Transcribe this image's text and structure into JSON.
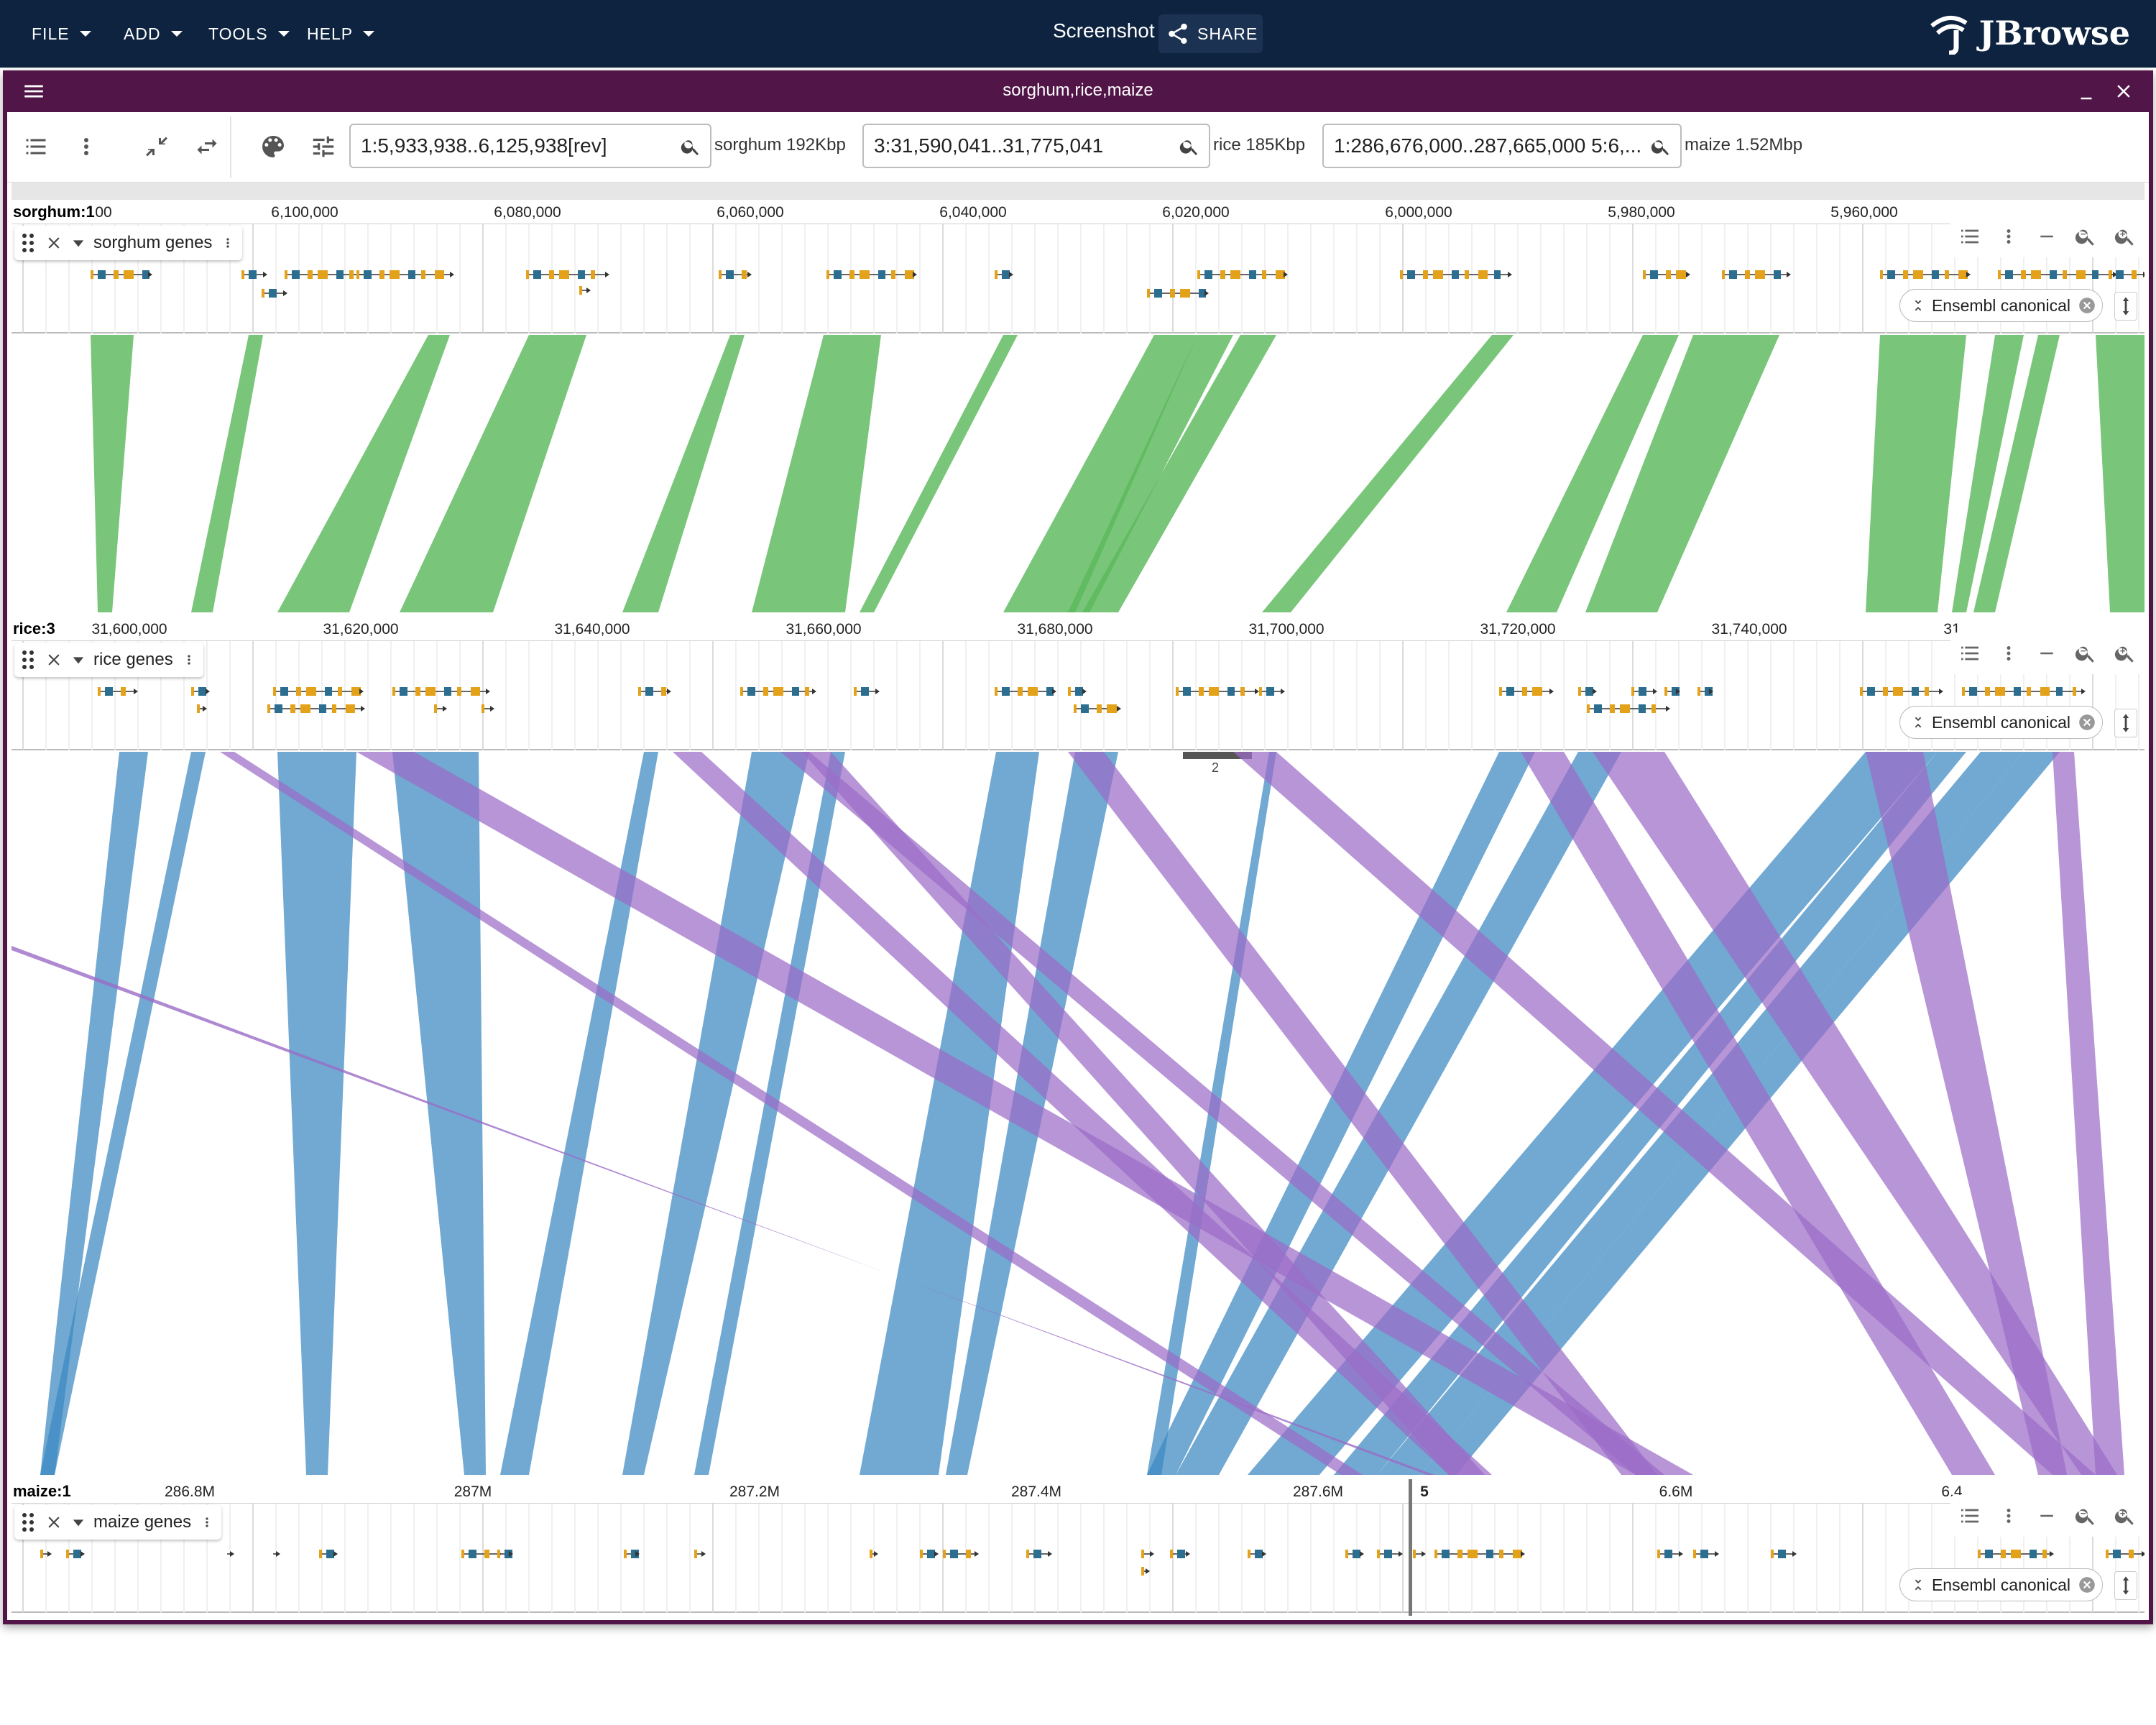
{
  "appbar": {
    "menus": [
      "FILE",
      "ADD",
      "TOOLS",
      "HELP"
    ],
    "title": "Screenshot",
    "share_label": "SHARE",
    "brand": "JBrowse"
  },
  "view": {
    "title": "sorghum,rice,maize"
  },
  "toolbar": {
    "locations": [
      {
        "value": "1:5,933,938..6,125,938[rev]",
        "assembly": "sorghum 192Kbp"
      },
      {
        "value": "3:31,590,041..31,775,041",
        "assembly": "rice 185Kbp"
      },
      {
        "value": "1:286,676,000..287,665,000 5:6,...",
        "assembly": "maize 1.52Mbp"
      }
    ]
  },
  "panels": [
    {
      "refname": "sorghum:1",
      "ticks": [
        "00",
        "6,100,000",
        "6,080,000",
        "6,060,000",
        "6,040,000",
        "6,020,000",
        "6,000,000",
        "5,980,000",
        "5,960,000"
      ],
      "track_label": "sorghum genes",
      "chip": "Ensembl canonical"
    },
    {
      "refname": "rice:3",
      "ticks": [
        "31,600,000",
        "31,620,000",
        "31,640,000",
        "31,660,000",
        "31,680,000",
        "31,700,000",
        "31,720,000",
        "31,740,000",
        "31"
      ],
      "track_label": "rice genes",
      "chip": "Ensembl canonical",
      "overlap_count": "2"
    },
    {
      "refname": "maize:1",
      "ticks": [
        "286.8M",
        "287M",
        "287.2M",
        "287.4M",
        "287.6M",
        "5",
        "6.6M",
        "6.4"
      ],
      "track_label": "maize genes",
      "chip": "Ensembl canonical"
    }
  ],
  "colors": {
    "appbar": "#0d233f",
    "view_header": "#511548",
    "synteny_sorghum_rice": "#5cb85c",
    "synteny_forward": "#3a88c0",
    "synteny_reverse": "#9b6cc7",
    "gene_exon_yellow": "#e3a21a",
    "gene_exon_teal": "#2c6e8f"
  },
  "icons": [
    "menu-icon",
    "minimize-icon",
    "close-icon",
    "track-selector-icon",
    "more-vert-icon",
    "compress-icon",
    "swap-icon",
    "palette-icon",
    "tune-icon",
    "search-icon",
    "share-icon",
    "drag-handle-icon",
    "zoom-out-icon",
    "zoom-in-icon",
    "expand-icon"
  ]
}
